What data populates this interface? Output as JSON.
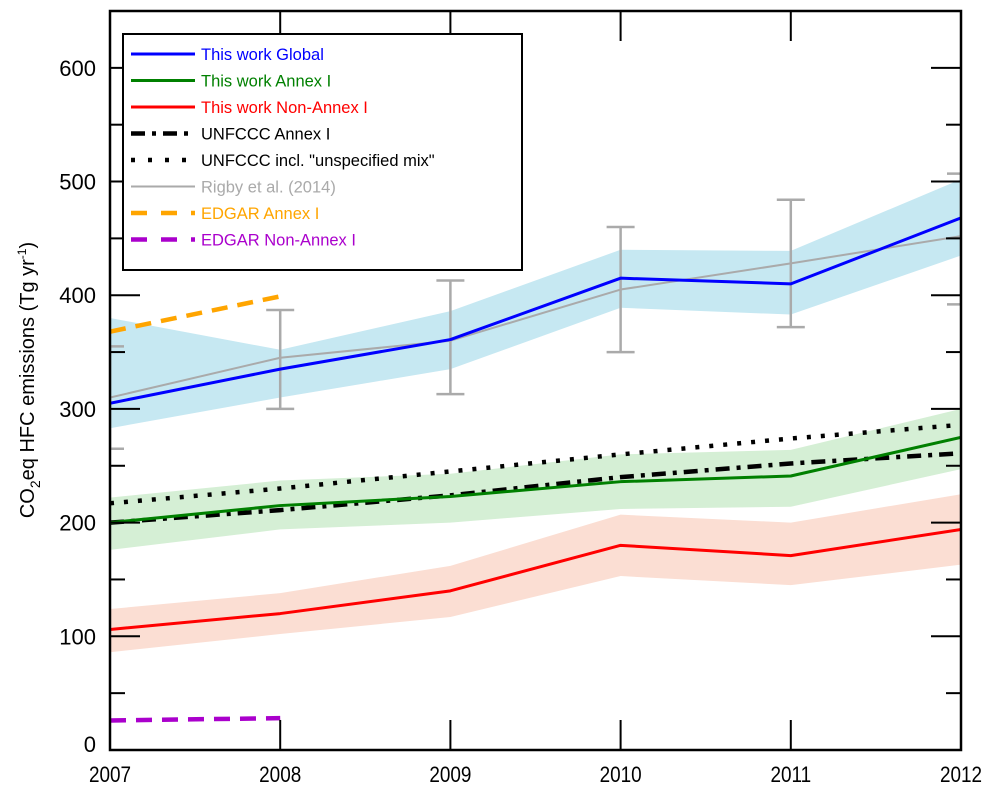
{
  "chart_data": {
    "type": "line",
    "title": "",
    "xlabel": "",
    "ylabel": {
      "prefix": "CO",
      "sub": "2",
      "middle": "eq HFC emissions (Tg yr",
      "sup": "-1",
      "suffix": ")"
    },
    "x": [
      2007,
      2008,
      2009,
      2010,
      2011,
      2012
    ],
    "xlim": [
      2007,
      2012
    ],
    "ylim": [
      0,
      650
    ],
    "xticks": [
      "2007",
      "2008",
      "2009",
      "2010",
      "2011",
      "2012"
    ],
    "yticks": [
      0,
      100,
      200,
      300,
      400,
      500,
      600
    ],
    "ytick_labels": [
      "0",
      "100",
      "200",
      "300",
      "400",
      "500",
      "600"
    ],
    "grid": false,
    "legend_position": "top-left",
    "bands": [
      {
        "name": "This work Global range",
        "color": "#c6e8f2",
        "upper": [
          380,
          352,
          386,
          440,
          439,
          502
        ],
        "lower": [
          283,
          310,
          335,
          389,
          383,
          435
        ]
      },
      {
        "name": "This work Annex I range",
        "color": "#d5efd5",
        "upper": [
          222,
          237,
          243,
          260,
          264,
          300
        ],
        "lower": [
          176,
          194,
          200,
          212,
          214,
          247
        ]
      },
      {
        "name": "This work Non-Annex I range",
        "color": "#fbded3",
        "upper": [
          124,
          138,
          162,
          207,
          200,
          225
        ],
        "lower": [
          86,
          102,
          117,
          153,
          145,
          163
        ]
      }
    ],
    "error_bars": {
      "series": "Rigby et al. (2014)",
      "color": "#aaaaaa",
      "x": [
        2007,
        2008,
        2009,
        2010,
        2011,
        2012
      ],
      "low": [
        265,
        300,
        313,
        350,
        372,
        392
      ],
      "high": [
        355,
        387,
        413,
        460,
        484,
        507
      ]
    },
    "series": [
      {
        "name": "Rigby et al. (2014)",
        "color": "#aaaaaa",
        "style": "solid",
        "x": [
          2007,
          2008,
          2009,
          2010,
          2011,
          2012
        ],
        "values": [
          310,
          345,
          360,
          405,
          428,
          452
        ]
      },
      {
        "name": "UNFCCC incl. \"unspecified mix\"",
        "color": "#000000",
        "style": "dotted",
        "x": [
          2007,
          2008,
          2009,
          2010,
          2011,
          2012
        ],
        "values": [
          217,
          230,
          245,
          260,
          274,
          286
        ]
      },
      {
        "name": "UNFCCC Annex I",
        "color": "#000000",
        "style": "dashdot",
        "x": [
          2007,
          2008,
          2009,
          2010,
          2011,
          2012
        ],
        "values": [
          200,
          211,
          224,
          240,
          252,
          261
        ]
      },
      {
        "name": "This work Annex I",
        "color": "#008000",
        "style": "solid",
        "x": [
          2007,
          2008,
          2009,
          2010,
          2011,
          2012
        ],
        "values": [
          200,
          215,
          223,
          236,
          241,
          275
        ]
      },
      {
        "name": "This work Non-Annex I",
        "color": "#ff0000",
        "style": "solid",
        "x": [
          2007,
          2008,
          2009,
          2010,
          2011,
          2012
        ],
        "values": [
          106,
          120,
          140,
          180,
          171,
          194
        ]
      },
      {
        "name": "This work Global",
        "color": "#0000ff",
        "style": "solid",
        "x": [
          2007,
          2008,
          2009,
          2010,
          2011,
          2012
        ],
        "values": [
          305,
          335,
          361,
          415,
          410,
          468
        ]
      },
      {
        "name": "EDGAR Annex I",
        "color": "#ffa500",
        "style": "dashed",
        "x": [
          2007,
          2008
        ],
        "values": [
          368,
          399
        ]
      },
      {
        "name": "EDGAR Non-Annex I",
        "color": "#aa00cc",
        "style": "dashed",
        "x": [
          2007,
          2008
        ],
        "values": [
          26,
          28
        ]
      }
    ],
    "legend": [
      {
        "label": "This work Global",
        "color": "#0000ff",
        "style": "solid"
      },
      {
        "label": "This work Annex I",
        "color": "#008000",
        "style": "solid"
      },
      {
        "label": "This work Non-Annex I",
        "color": "#ff0000",
        "style": "solid"
      },
      {
        "label": "UNFCCC Annex I",
        "color": "#000000",
        "style": "dashdot"
      },
      {
        "label": "UNFCCC incl. \"unspecified mix\"",
        "color": "#000000",
        "style": "dotted"
      },
      {
        "label": "Rigby et al. (2014)",
        "color": "#aaaaaa",
        "style": "thin"
      },
      {
        "label": "EDGAR Annex I",
        "color": "#ffa500",
        "style": "dashed"
      },
      {
        "label": "EDGAR Non-Annex I",
        "color": "#aa00cc",
        "style": "dashed"
      }
    ]
  }
}
